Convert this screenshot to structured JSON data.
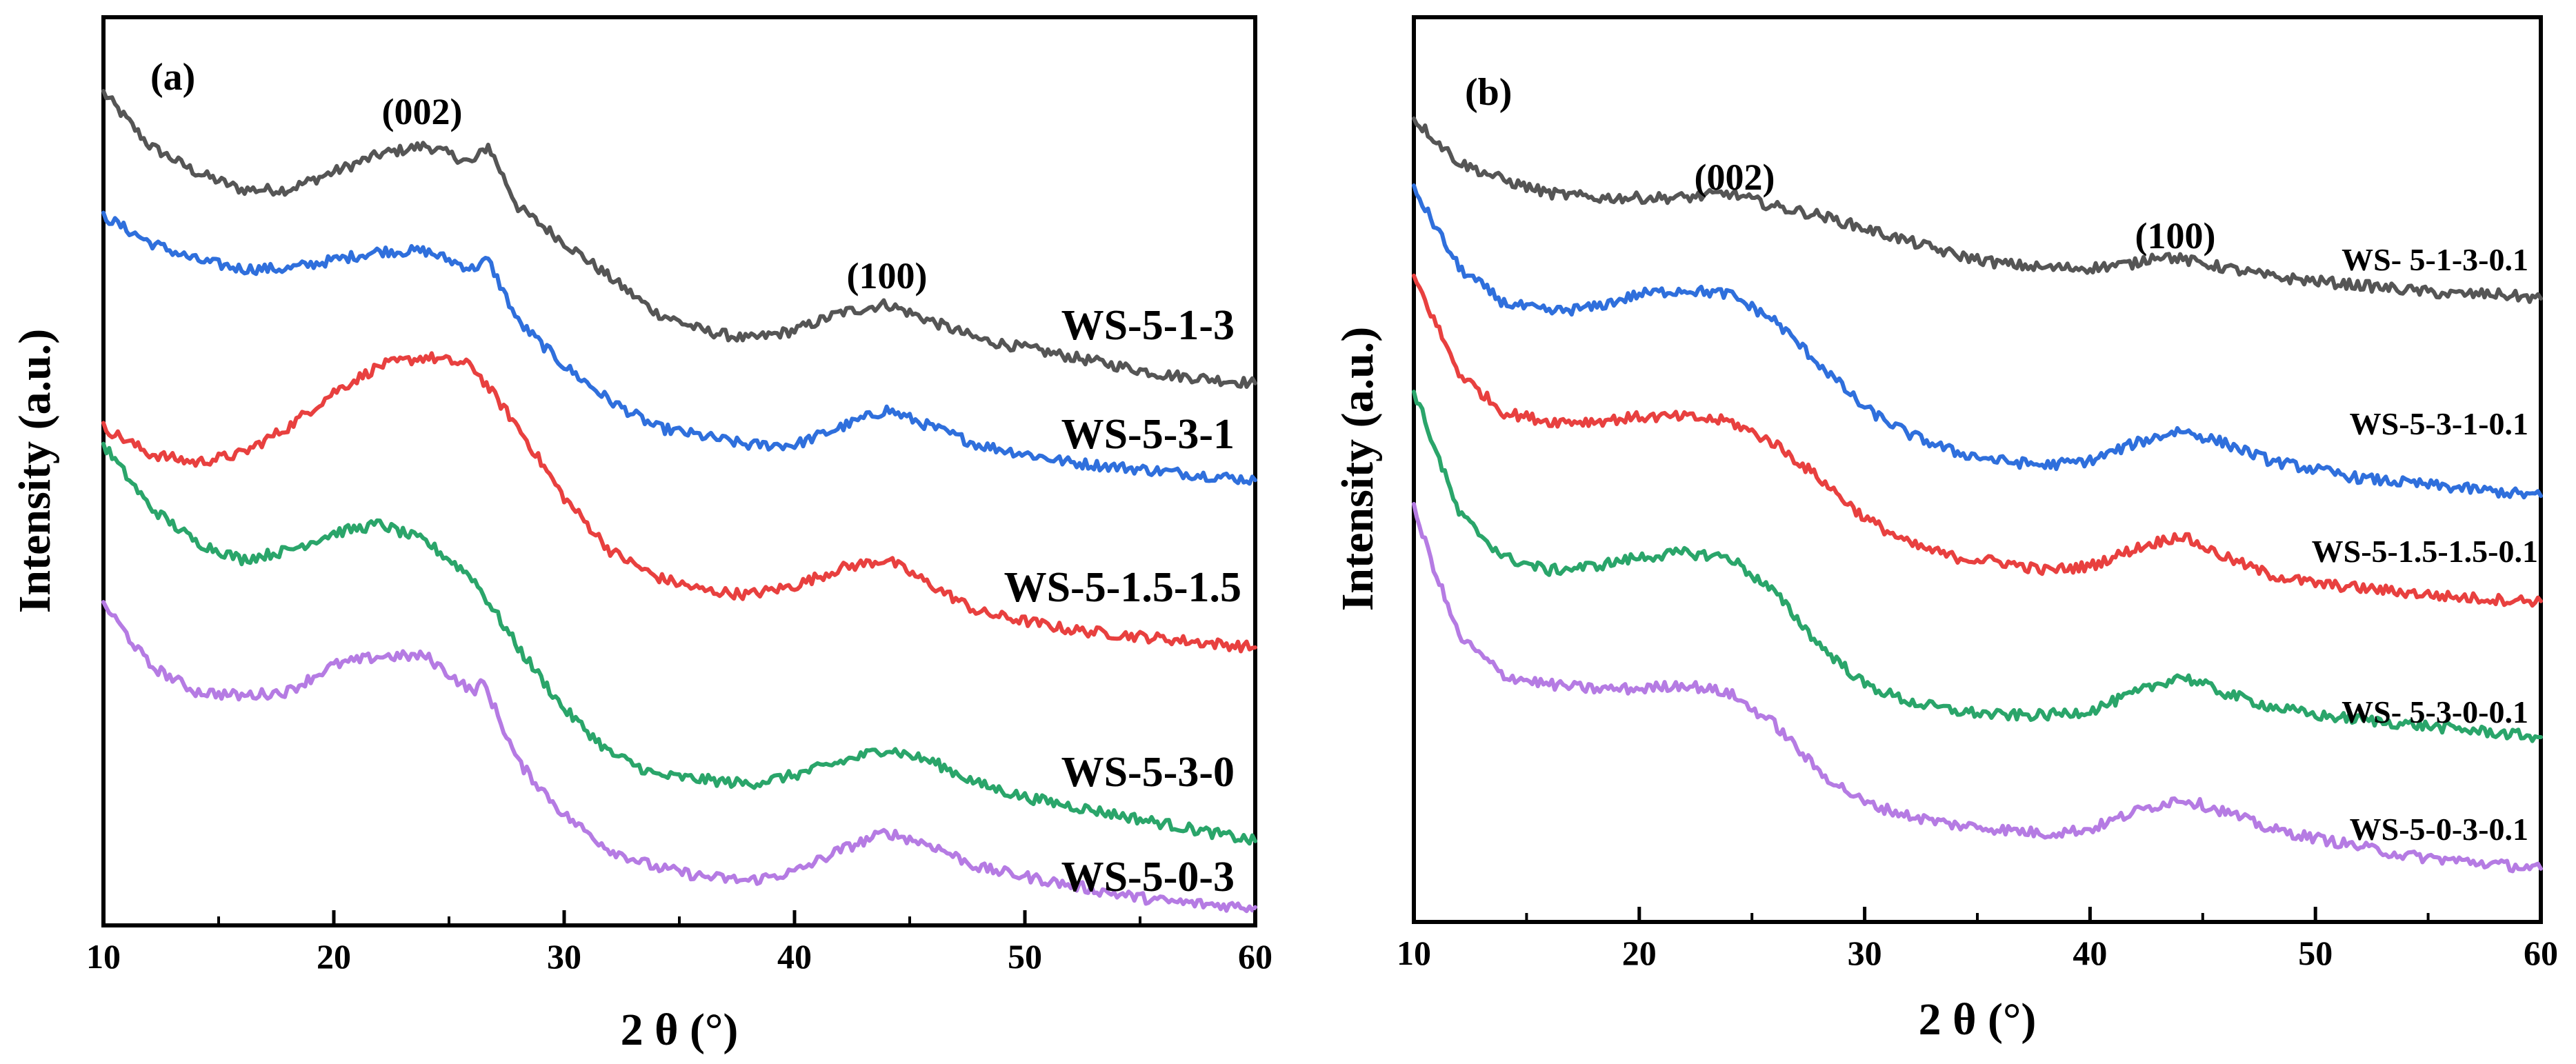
{
  "colors": {
    "gray": "#555555",
    "blue": "#2f6fdc",
    "red": "#e8403f",
    "green": "#2aa56a",
    "purple": "#b57be3"
  },
  "chart_data": [
    {
      "type": "line",
      "panel_label": "(a)",
      "xlabel": "2 θ (°)",
      "ylabel": "Intensity (a.u.)",
      "xlim": [
        10,
        60
      ],
      "ylim": [
        0,
        1
      ],
      "xticks": [
        "10",
        "20",
        "30",
        "40",
        "50",
        "60"
      ],
      "annotations": [
        {
          "text": "(002)",
          "x": 23.5,
          "y": 0.86
        },
        {
          "text": "(100)",
          "x": 43.5,
          "y": 0.71
        }
      ],
      "series": [
        {
          "name": "WS-5-1-3",
          "color": "gray",
          "x": [
            10,
            12,
            14,
            16,
            18,
            20,
            22,
            24,
            26,
            26.7,
            28,
            30,
            32,
            34,
            36,
            38,
            40,
            42,
            44,
            46,
            48,
            50,
            52,
            54,
            56,
            58,
            60
          ],
          "y": [
            0.93,
            0.87,
            0.84,
            0.82,
            0.82,
            0.84,
            0.86,
            0.87,
            0.85,
            0.87,
            0.8,
            0.76,
            0.72,
            0.68,
            0.66,
            0.65,
            0.66,
            0.68,
            0.69,
            0.67,
            0.65,
            0.64,
            0.63,
            0.62,
            0.61,
            0.605,
            0.6
          ]
        },
        {
          "name": "WS-5-3-1",
          "color": "blue",
          "x": [
            10,
            12,
            14,
            16,
            18,
            20,
            22,
            24,
            26,
            26.7,
            28,
            30,
            32,
            34,
            36,
            38,
            40,
            42,
            44,
            46,
            48,
            50,
            52,
            54,
            56,
            58,
            60
          ],
          "y": [
            0.79,
            0.76,
            0.74,
            0.73,
            0.73,
            0.74,
            0.75,
            0.75,
            0.73,
            0.74,
            0.67,
            0.62,
            0.58,
            0.55,
            0.54,
            0.53,
            0.53,
            0.55,
            0.57,
            0.55,
            0.53,
            0.52,
            0.51,
            0.505,
            0.5,
            0.495,
            0.49
          ]
        },
        {
          "name": "WS-5-1.5-1.5",
          "color": "red",
          "x": [
            10,
            12,
            14,
            16,
            18,
            20,
            22,
            24,
            26,
            28,
            30,
            32,
            34,
            36,
            38,
            40,
            42,
            44,
            46,
            48,
            50,
            52,
            54,
            56,
            58,
            60
          ],
          "y": [
            0.55,
            0.52,
            0.51,
            0.52,
            0.55,
            0.59,
            0.62,
            0.63,
            0.62,
            0.55,
            0.47,
            0.41,
            0.38,
            0.365,
            0.36,
            0.37,
            0.39,
            0.4,
            0.37,
            0.34,
            0.33,
            0.32,
            0.315,
            0.31,
            0.305,
            0.3
          ]
        },
        {
          "name": "WS-5-3-0",
          "color": "green",
          "x": [
            10,
            12,
            14,
            16,
            18,
            20,
            22,
            24,
            26,
            28,
            30,
            32,
            34,
            36,
            38,
            40,
            42,
            44,
            46,
            48,
            50,
            52,
            54,
            56,
            58,
            60
          ],
          "y": [
            0.53,
            0.46,
            0.42,
            0.4,
            0.41,
            0.43,
            0.44,
            0.42,
            0.38,
            0.3,
            0.23,
            0.18,
            0.155,
            0.15,
            0.145,
            0.155,
            0.17,
            0.185,
            0.17,
            0.145,
            0.13,
            0.12,
            0.11,
            0.1,
            0.09,
            0.08
          ]
        },
        {
          "name": "WS-5-0-3",
          "color": "purple",
          "x": [
            10,
            12,
            14,
            16,
            18,
            20,
            22,
            24,
            26,
            26.5,
            28,
            30,
            32,
            34,
            36,
            38,
            40,
            42,
            44,
            46,
            48,
            50,
            52,
            54,
            56,
            58,
            60
          ],
          "y": [
            0.35,
            0.28,
            0.25,
            0.245,
            0.25,
            0.28,
            0.29,
            0.29,
            0.25,
            0.26,
            0.17,
            0.11,
            0.07,
            0.05,
            0.04,
            0.035,
            0.045,
            0.07,
            0.09,
            0.075,
            0.05,
            0.04,
            0.03,
            0.02,
            0.012,
            0.008,
            0.005
          ]
        }
      ]
    },
    {
      "type": "line",
      "panel_label": "(b)",
      "xlabel": "2 θ (°)",
      "ylabel": "Intensity (a.u.)",
      "xlim": [
        10,
        60
      ],
      "ylim": [
        0,
        1
      ],
      "xticks": [
        "10",
        "20",
        "30",
        "40",
        "50",
        "60"
      ],
      "annotations": [
        {
          "text": "(002)",
          "x": 24,
          "y": 0.87
        },
        {
          "text": "(100)",
          "x": 44,
          "y": 0.77
        }
      ],
      "series": [
        {
          "name": "WS- 5-1-3-0.1",
          "color": "gray",
          "x": [
            10,
            12,
            14,
            16,
            18,
            20,
            22,
            24,
            26,
            28,
            30,
            32,
            34,
            36,
            38,
            40,
            42,
            43,
            44,
            46,
            48,
            50,
            52,
            54,
            56,
            58,
            60
          ],
          "y": [
            0.9,
            0.85,
            0.83,
            0.815,
            0.81,
            0.81,
            0.81,
            0.815,
            0.8,
            0.79,
            0.775,
            0.76,
            0.745,
            0.735,
            0.73,
            0.73,
            0.735,
            0.745,
            0.74,
            0.73,
            0.72,
            0.715,
            0.71,
            0.705,
            0.7,
            0.7,
            0.695
          ]
        },
        {
          "name": "WS-5-3-1-0.1",
          "color": "blue",
          "x": [
            10,
            12,
            14,
            16,
            18,
            20,
            22,
            24,
            26,
            28,
            30,
            32,
            34,
            36,
            38,
            40,
            42,
            44,
            46,
            48,
            50,
            52,
            54,
            56,
            58,
            60
          ],
          "y": [
            0.82,
            0.73,
            0.69,
            0.68,
            0.685,
            0.7,
            0.705,
            0.7,
            0.67,
            0.62,
            0.57,
            0.54,
            0.52,
            0.51,
            0.505,
            0.51,
            0.53,
            0.545,
            0.53,
            0.51,
            0.5,
            0.49,
            0.485,
            0.48,
            0.475,
            0.47
          ]
        },
        {
          "name": "WS-5-1.5-1.5-0.1",
          "color": "red",
          "x": [
            10,
            12,
            14,
            16,
            18,
            20,
            22,
            24,
            26,
            28,
            30,
            32,
            34,
            36,
            38,
            40,
            42,
            44,
            46,
            48,
            50,
            52,
            54,
            56,
            58,
            60
          ],
          "y": [
            0.72,
            0.61,
            0.565,
            0.555,
            0.555,
            0.56,
            0.56,
            0.555,
            0.53,
            0.49,
            0.445,
            0.415,
            0.4,
            0.395,
            0.385,
            0.39,
            0.41,
            0.425,
            0.4,
            0.38,
            0.37,
            0.365,
            0.36,
            0.355,
            0.352,
            0.35
          ]
        },
        {
          "name": "WS- 5-3-0-0.1",
          "color": "green",
          "x": [
            10,
            12,
            14,
            16,
            18,
            20,
            22,
            24,
            26,
            28,
            30,
            32,
            34,
            36,
            38,
            40,
            42,
            44,
            46,
            48,
            50,
            52,
            54,
            56,
            58,
            60
          ],
          "y": [
            0.59,
            0.45,
            0.4,
            0.385,
            0.39,
            0.4,
            0.405,
            0.4,
            0.36,
            0.3,
            0.255,
            0.235,
            0.225,
            0.22,
            0.22,
            0.225,
            0.245,
            0.265,
            0.245,
            0.23,
            0.22,
            0.215,
            0.21,
            0.205,
            0.2,
            0.195
          ]
        },
        {
          "name": "WS-5-0-3-0.1",
          "color": "purple",
          "x": [
            10,
            11,
            12,
            14,
            16,
            18,
            20,
            22,
            24,
            26,
            28,
            30,
            32,
            34,
            36,
            38,
            40,
            42,
            44,
            46,
            48,
            50,
            52,
            54,
            56,
            58,
            60
          ],
          "y": [
            0.455,
            0.38,
            0.31,
            0.265,
            0.255,
            0.25,
            0.25,
            0.255,
            0.245,
            0.21,
            0.155,
            0.12,
            0.105,
            0.095,
            0.09,
            0.085,
            0.09,
            0.11,
            0.125,
            0.11,
            0.09,
            0.08,
            0.07,
            0.06,
            0.055,
            0.05,
            0.045
          ]
        }
      ]
    }
  ]
}
